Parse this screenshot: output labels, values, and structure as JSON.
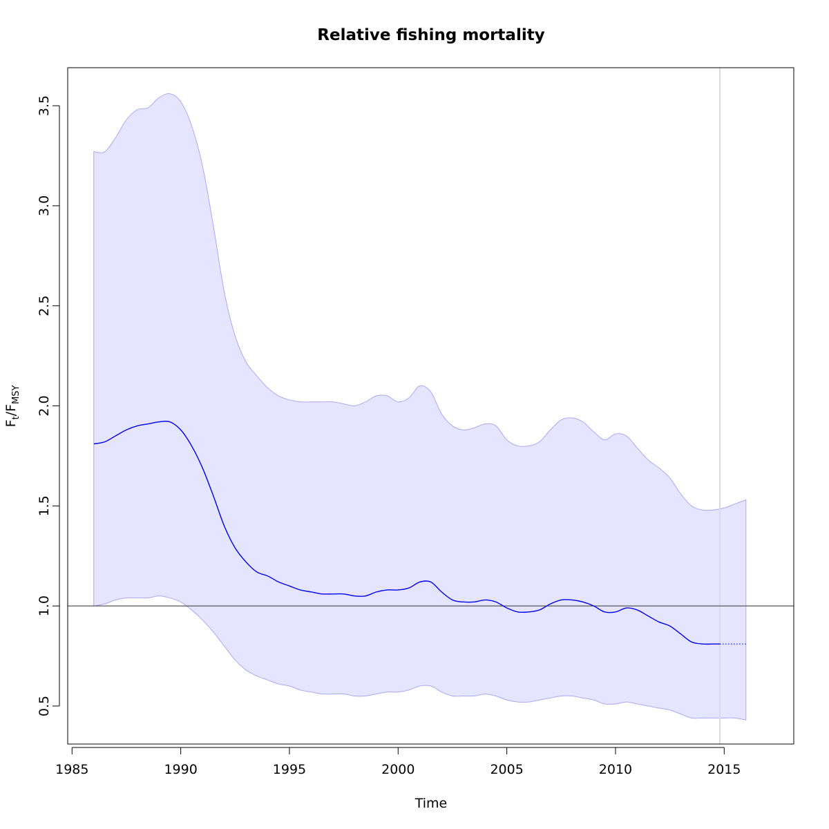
{
  "chart_data": {
    "type": "line",
    "title": "Relative fishing mortality",
    "xlabel": "Time",
    "ylabel": {
      "base_1": "F",
      "sub_1": "t",
      "separator": "/",
      "base_2": "F",
      "sub_2": "MSY"
    },
    "xlim": [
      1984.8,
      2018.2
    ],
    "ylim": [
      0.31,
      3.69
    ],
    "x_ticks": [
      1985,
      1990,
      1995,
      2000,
      2005,
      2010,
      2015
    ],
    "y_ticks": [
      0.5,
      1.0,
      1.5,
      2.0,
      2.5,
      3.0,
      3.5
    ],
    "x_tick_labels": [
      "1985",
      "1990",
      "1995",
      "2000",
      "2005",
      "2010",
      "2015"
    ],
    "y_tick_labels": [
      "0.5",
      "1.0",
      "1.5",
      "2.0",
      "2.5",
      "3.0",
      "3.5"
    ],
    "reference_line_y": 1.0,
    "vertical_marker_x": 2014.8,
    "colors": {
      "series": "#0000ee",
      "band_fill": "#e5e5ff",
      "band_edge": "#a8a8f5",
      "reference": "#555555",
      "marker": "#d9d9e6"
    },
    "series": [
      {
        "role": "estimate",
        "x": [
          1986.0,
          1986.5,
          1987.0,
          1987.5,
          1988.0,
          1988.5,
          1989.0,
          1989.5,
          1990.0,
          1990.5,
          1991.0,
          1991.5,
          1992.0,
          1992.5,
          1993.0,
          1993.5,
          1994.0,
          1994.5,
          1995.0,
          1995.5,
          1996.0,
          1996.5,
          1997.0,
          1997.5,
          1998.0,
          1998.5,
          1999.0,
          1999.5,
          2000.0,
          2000.5,
          2001.0,
          2001.5,
          2002.0,
          2002.5,
          2003.0,
          2003.5,
          2004.0,
          2004.5,
          2005.0,
          2005.5,
          2006.0,
          2006.5,
          2007.0,
          2007.5,
          2008.0,
          2008.5,
          2009.0,
          2009.5,
          2010.0,
          2010.5,
          2011.0,
          2011.5,
          2012.0,
          2012.5,
          2013.0,
          2013.5,
          2014.0,
          2014.5,
          2014.8
        ],
        "y": [
          1.81,
          1.82,
          1.85,
          1.88,
          1.9,
          1.91,
          1.92,
          1.92,
          1.88,
          1.8,
          1.69,
          1.55,
          1.4,
          1.29,
          1.22,
          1.17,
          1.15,
          1.12,
          1.1,
          1.08,
          1.07,
          1.06,
          1.06,
          1.06,
          1.05,
          1.05,
          1.07,
          1.08,
          1.08,
          1.09,
          1.12,
          1.12,
          1.07,
          1.03,
          1.02,
          1.02,
          1.03,
          1.02,
          0.99,
          0.97,
          0.97,
          0.98,
          1.01,
          1.03,
          1.03,
          1.02,
          1.0,
          0.97,
          0.97,
          0.99,
          0.98,
          0.95,
          0.92,
          0.9,
          0.86,
          0.82,
          0.81,
          0.81,
          0.81
        ]
      },
      {
        "role": "forecast",
        "line_style": "dotted",
        "x": [
          2014.8,
          2015.5,
          2016.0
        ],
        "y": [
          0.81,
          0.81,
          0.81
        ]
      },
      {
        "role": "upper_bound",
        "x": [
          1986.0,
          1986.5,
          1987.0,
          1987.5,
          1988.0,
          1988.5,
          1989.0,
          1989.5,
          1990.0,
          1990.5,
          1991.0,
          1991.5,
          1992.0,
          1992.5,
          1993.0,
          1993.5,
          1994.0,
          1994.5,
          1995.0,
          1995.5,
          1996.0,
          1996.5,
          1997.0,
          1997.5,
          1998.0,
          1998.5,
          1999.0,
          1999.5,
          2000.0,
          2000.5,
          2001.0,
          2001.5,
          2002.0,
          2002.5,
          2003.0,
          2003.5,
          2004.0,
          2004.5,
          2005.0,
          2005.5,
          2006.0,
          2006.5,
          2007.0,
          2007.5,
          2008.0,
          2008.5,
          2009.0,
          2009.5,
          2010.0,
          2010.5,
          2011.0,
          2011.5,
          2012.0,
          2012.5,
          2013.0,
          2013.5,
          2014.0,
          2014.5,
          2015.0,
          2015.5,
          2016.0
        ],
        "y": [
          3.27,
          3.27,
          3.34,
          3.43,
          3.48,
          3.49,
          3.54,
          3.56,
          3.52,
          3.4,
          3.2,
          2.9,
          2.57,
          2.35,
          2.22,
          2.15,
          2.09,
          2.05,
          2.03,
          2.02,
          2.02,
          2.02,
          2.02,
          2.01,
          2.0,
          2.02,
          2.05,
          2.05,
          2.02,
          2.04,
          2.1,
          2.07,
          1.96,
          1.9,
          1.88,
          1.89,
          1.91,
          1.9,
          1.83,
          1.8,
          1.8,
          1.82,
          1.88,
          1.93,
          1.94,
          1.92,
          1.87,
          1.83,
          1.86,
          1.85,
          1.79,
          1.73,
          1.69,
          1.64,
          1.56,
          1.5,
          1.48,
          1.48,
          1.49,
          1.51,
          1.53
        ]
      },
      {
        "role": "lower_bound",
        "x": [
          1986.0,
          1986.5,
          1987.0,
          1987.5,
          1988.0,
          1988.5,
          1989.0,
          1989.5,
          1990.0,
          1990.5,
          1991.0,
          1991.5,
          1992.0,
          1992.5,
          1993.0,
          1993.5,
          1994.0,
          1994.5,
          1995.0,
          1995.5,
          1996.0,
          1996.5,
          1997.0,
          1997.5,
          1998.0,
          1998.5,
          1999.0,
          1999.5,
          2000.0,
          2000.5,
          2001.0,
          2001.5,
          2002.0,
          2002.5,
          2003.0,
          2003.5,
          2004.0,
          2004.5,
          2005.0,
          2005.5,
          2006.0,
          2006.5,
          2007.0,
          2007.5,
          2008.0,
          2008.5,
          2009.0,
          2009.5,
          2010.0,
          2010.5,
          2011.0,
          2011.5,
          2012.0,
          2012.5,
          2013.0,
          2013.5,
          2014.0,
          2014.5,
          2015.0,
          2015.5,
          2016.0
        ],
        "y": [
          1.0,
          1.01,
          1.03,
          1.04,
          1.04,
          1.04,
          1.05,
          1.04,
          1.02,
          0.98,
          0.93,
          0.87,
          0.8,
          0.73,
          0.68,
          0.65,
          0.63,
          0.61,
          0.6,
          0.58,
          0.57,
          0.56,
          0.56,
          0.56,
          0.55,
          0.55,
          0.56,
          0.57,
          0.57,
          0.58,
          0.6,
          0.6,
          0.57,
          0.55,
          0.55,
          0.55,
          0.56,
          0.55,
          0.53,
          0.52,
          0.52,
          0.53,
          0.54,
          0.55,
          0.55,
          0.54,
          0.53,
          0.51,
          0.51,
          0.52,
          0.51,
          0.5,
          0.49,
          0.48,
          0.46,
          0.44,
          0.44,
          0.44,
          0.44,
          0.44,
          0.43
        ]
      }
    ]
  }
}
